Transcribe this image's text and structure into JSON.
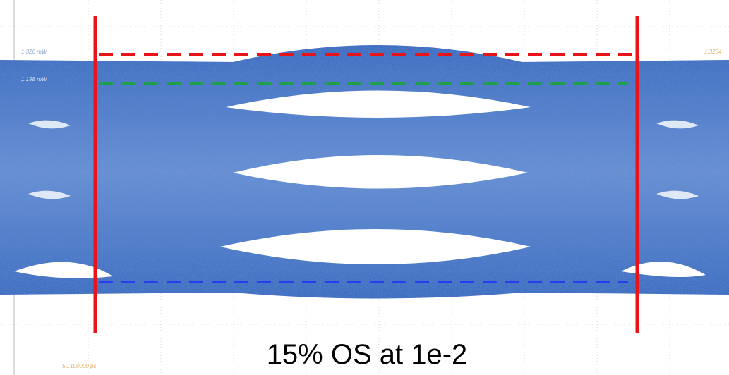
{
  "screen": {
    "labels": {
      "level_top": "1.320 mW",
      "level_mid": "1.198 mW",
      "right_marker": "1.3204",
      "time_base": "50.100000 ps"
    },
    "caption": "15% OS at 1e-2"
  }
}
